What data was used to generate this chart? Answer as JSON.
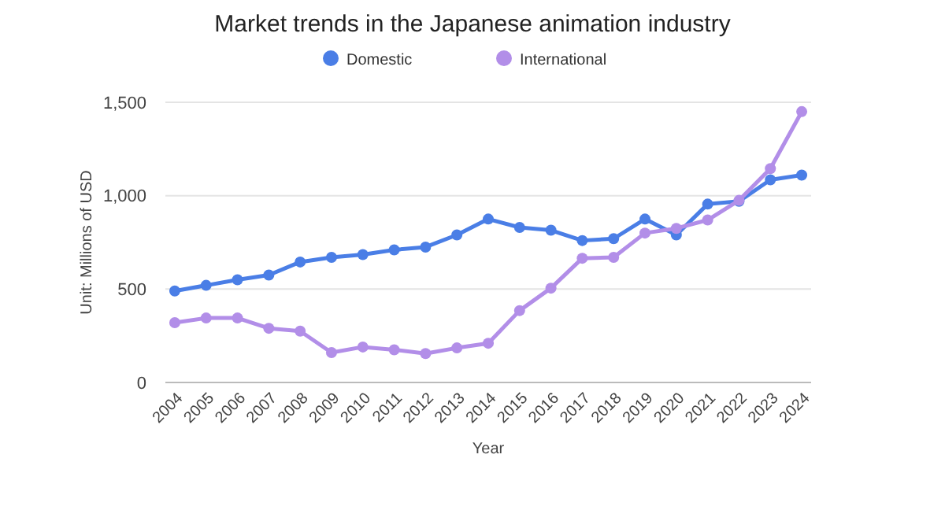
{
  "chart_data": {
    "type": "line",
    "title": "Market trends in the Japanese animation industry",
    "xlabel": "Year",
    "ylabel": "Unit: Millions of USD",
    "categories": [
      "2004",
      "2005",
      "2006",
      "2007",
      "2008",
      "2009",
      "2010",
      "2011",
      "2012",
      "2013",
      "2014",
      "2015",
      "2016",
      "2017",
      "2018",
      "2019",
      "2020",
      "2021",
      "2022",
      "2023",
      "2024"
    ],
    "series": [
      {
        "name": "Domestic",
        "color": "#4a7ee6",
        "values": [
          490,
          520,
          550,
          575,
          645,
          670,
          685,
          710,
          725,
          790,
          875,
          830,
          815,
          760,
          770,
          875,
          790,
          955,
          970,
          1085,
          1110
        ]
      },
      {
        "name": "International",
        "color": "#b28ee8",
        "values": [
          320,
          345,
          345,
          290,
          275,
          160,
          190,
          175,
          155,
          185,
          210,
          385,
          505,
          665,
          670,
          800,
          825,
          870,
          975,
          1145,
          1450
        ]
      }
    ],
    "ylim": [
      0,
      1500
    ],
    "yticks": [
      {
        "value": 0,
        "label": "0"
      },
      {
        "value": 500,
        "label": "500"
      },
      {
        "value": 1000,
        "label": "1,000"
      },
      {
        "value": 1500,
        "label": "1,500"
      }
    ],
    "grid": "y",
    "legend": "top",
    "marker": "circle",
    "line_style": "solid"
  }
}
